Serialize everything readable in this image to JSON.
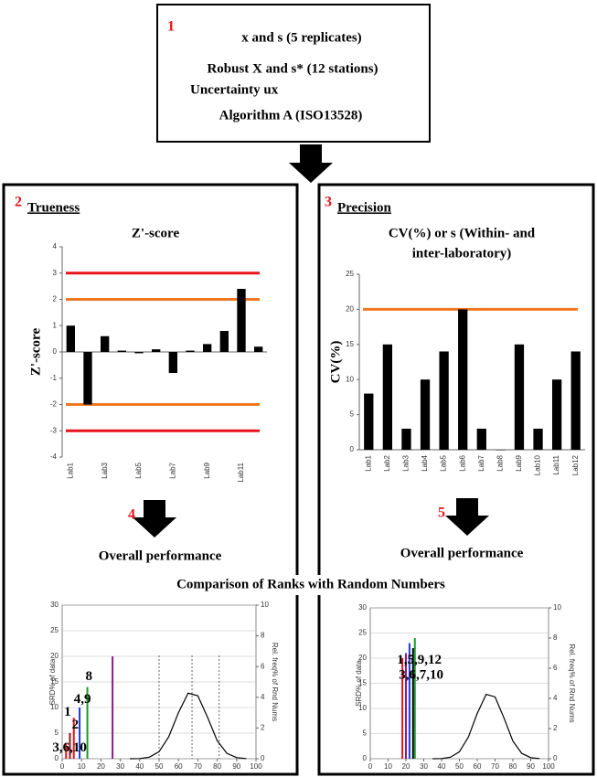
{
  "step1": {
    "number": "1",
    "lines": [
      "x and s (5 replicates)",
      "Robust X and s* (12 stations)",
      "Uncertainty ux",
      "Algorithm A (ISO13528)"
    ]
  },
  "trueness": {
    "number": "2",
    "title": "Trueness"
  },
  "precision": {
    "number": "3",
    "title": "Precision"
  },
  "performance": [
    {
      "number": "4",
      "label": "Overall performance"
    },
    {
      "number": "5",
      "label": "Overall performance"
    }
  ],
  "comparison_title": "Comparison of Ranks with Random Numbers",
  "chart_data": [
    {
      "type": "bar",
      "title": [
        "Z'-score"
      ],
      "y_label": "Z'-score",
      "categories": [
        "Lab1",
        null,
        "Lab3",
        null,
        "Lab5",
        null,
        "Lab7",
        null,
        "Lab9",
        null,
        "Lab11",
        null
      ],
      "values": [
        1.0,
        -2.0,
        0.6,
        0.05,
        -0.05,
        0.1,
        -0.8,
        0.05,
        0.3,
        0.8,
        2.4,
        0.2
      ],
      "color": "#000000",
      "ylim": [
        -4,
        4
      ],
      "yticks": [
        -4,
        -3,
        -2,
        -1,
        0,
        1,
        2,
        3,
        4
      ],
      "hlines": [
        {
          "value": 3,
          "color": "#e8141a"
        },
        {
          "value": 2,
          "color": "#f07820"
        },
        {
          "value": -2,
          "color": "#f07820"
        },
        {
          "value": -3,
          "color": "#e8141a"
        }
      ]
    },
    {
      "type": "bar",
      "title": [
        "CV(%)  or  s (Within-  and",
        "inter-laboratory)"
      ],
      "y_label": "CV(%)",
      "categories": [
        "Lab1",
        "Lab2",
        "Lab3",
        "Lab4",
        "Lab5",
        "Lab6",
        "Lab7",
        "Lab8",
        "Lab9",
        "Lab10",
        "Lab11",
        "Lab12"
      ],
      "values": [
        8,
        15,
        3,
        10,
        14,
        20,
        3,
        0,
        15,
        3,
        10,
        14
      ],
      "color": "#000000",
      "ylim": [
        0,
        25
      ],
      "yticks": [
        0,
        5,
        10,
        15,
        20,
        25
      ],
      "hlines": [
        {
          "value": 20,
          "color": "#f07820"
        }
      ]
    },
    {
      "type": "line",
      "y_label": "SRD% of data",
      "y2_label": "Rel. freq% of Rnd Nums",
      "xlim": [
        0,
        100
      ],
      "xticks": [
        0,
        10,
        20,
        30,
        40,
        50,
        60,
        70,
        80,
        90,
        100
      ],
      "ylim": [
        0,
        30
      ],
      "yticks": [
        0,
        5,
        10,
        15,
        20,
        25,
        30
      ],
      "y2lim": [
        0,
        10
      ],
      "y2ticks": [
        0,
        2,
        4,
        6,
        8,
        10
      ],
      "grid": true,
      "vlines": [
        50,
        67,
        81
      ],
      "series": [
        {
          "style": "stem",
          "x": [
            2,
            4,
            6,
            9,
            13,
            26
          ],
          "values": [
            3,
            5,
            8,
            10,
            14,
            20
          ],
          "colors": [
            "#e8141a",
            "#8b1a1a",
            "#e8141a",
            "#1a3ad8",
            "#1a9a2a",
            "#8a1a8a"
          ]
        },
        {
          "style": "curve",
          "axis": "y2",
          "color": "#000000",
          "x": [
            35,
            40,
            45,
            50,
            55,
            60,
            65,
            70,
            75,
            80,
            85,
            90,
            95
          ],
          "values": [
            0,
            0.01,
            0.1,
            0.46,
            1.43,
            3.0,
            4.27,
            4.1,
            2.7,
            1.17,
            0.35,
            0.07,
            0.01
          ]
        }
      ],
      "annotations": [
        {
          "text": "8",
          "x": 12,
          "y": 16
        },
        {
          "text": "4,9",
          "x": 6,
          "y": 11.5
        },
        {
          "text": "1",
          "x": 1,
          "y": 9
        },
        {
          "text": "2",
          "x": 5,
          "y": 6.5
        },
        {
          "text": "3,6,10",
          "x": -5,
          "y": 2
        }
      ]
    },
    {
      "type": "line",
      "y_label": "SRD% of data",
      "y2_label": "Rel. freq% of Rnd Nums",
      "xlim": [
        0,
        100
      ],
      "xticks": [
        0,
        10,
        20,
        30,
        40,
        50,
        60,
        70,
        80,
        90,
        100
      ],
      "ylim": [
        0,
        30
      ],
      "yticks": [
        0,
        5,
        10,
        15,
        20,
        25,
        30
      ],
      "y2lim": [
        0,
        10
      ],
      "y2ticks": [
        0,
        2,
        4,
        6,
        8,
        10
      ],
      "grid": true,
      "vlines": [],
      "series": [
        {
          "style": "stem",
          "x": [
            18,
            20,
            22,
            24,
            25
          ],
          "values": [
            20,
            21,
            23,
            22,
            24
          ],
          "colors": [
            "#e8141a",
            "#8a1a8a",
            "#1a3ad8",
            "#000000",
            "#1a9a2a"
          ]
        },
        {
          "style": "curve",
          "axis": "y2",
          "color": "#000000",
          "x": [
            35,
            40,
            45,
            50,
            55,
            60,
            65,
            70,
            75,
            80,
            85,
            90,
            95
          ],
          "values": [
            0,
            0.01,
            0.1,
            0.46,
            1.43,
            3.0,
            4.27,
            4.1,
            2.7,
            1.17,
            0.35,
            0.07,
            0.01
          ]
        }
      ],
      "annotations": [
        {
          "text": "1,5,9,12",
          "x": 15,
          "y": 19.5
        },
        {
          "text": "3,6,7,10",
          "x": 16,
          "y": 16.5
        }
      ]
    }
  ]
}
